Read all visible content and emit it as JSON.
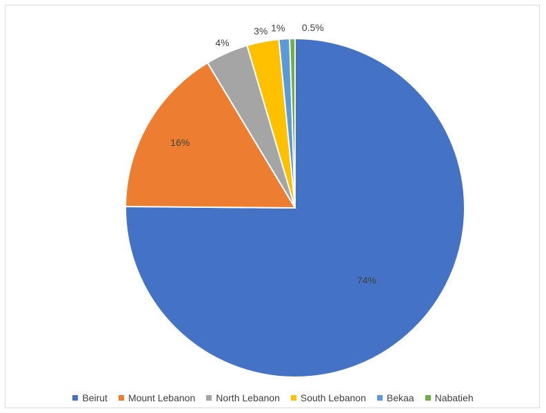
{
  "chart_data": {
    "type": "pie",
    "title": "",
    "categories": [
      "Beirut",
      "Mount Lebanon",
      "North Lebanon",
      "South Lebanon",
      "Bekaa",
      "Nabatieh"
    ],
    "values": [
      74,
      16,
      4,
      3,
      1,
      0.5
    ],
    "labels": [
      "74%",
      "16%",
      "4%",
      "3%",
      "1%",
      "0.5%"
    ],
    "colors": [
      "#4472C4",
      "#ED7D31",
      "#A5A5A5",
      "#FFC000",
      "#5B9BD5",
      "#70AD47"
    ],
    "start_angle": "12 o'clock",
    "direction": "clockwise",
    "legend_position": "bottom"
  }
}
